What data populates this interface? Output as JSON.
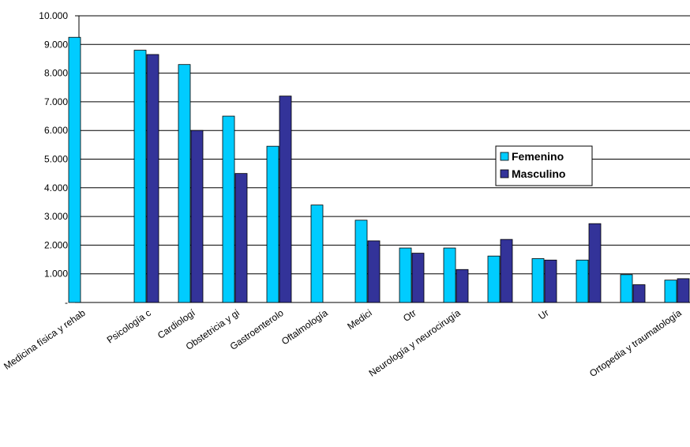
{
  "chart_data": {
    "type": "bar",
    "categories": [
      "Medicina física y rehab",
      "Psicología c",
      "Cardiologí",
      "Obstetricia y gi",
      "Gastroenterolo",
      "Oftalmología",
      "Medici",
      "Otr",
      "Neurología y neurocirugía",
      null,
      "Ur",
      null,
      null,
      "Ortopedia y traumatología"
    ],
    "series": [
      {
        "name": "Femenino",
        "color": "#00ccff",
        "values": [
          9250,
          8800,
          8300,
          6500,
          5450,
          3400,
          2870,
          1900,
          1900,
          1620,
          1530,
          1480,
          970,
          780
        ]
      },
      {
        "name": "Masculino",
        "color": "#333399",
        "values": [
          null,
          8650,
          6000,
          4500,
          7200,
          null,
          2150,
          1720,
          1150,
          2200,
          1480,
          2750,
          620,
          830
        ]
      }
    ],
    "ylim": [
      0,
      10000
    ],
    "yticks": [
      {
        "value": 0,
        "label": "-"
      },
      {
        "value": 1000,
        "label": "1.000"
      },
      {
        "value": 2000,
        "label": "2.000"
      },
      {
        "value": 3000,
        "label": "3.000"
      },
      {
        "value": 4000,
        "label": "4.000"
      },
      {
        "value": 5000,
        "label": "5.000"
      },
      {
        "value": 6000,
        "label": "6.000"
      },
      {
        "value": 7000,
        "label": "7.000"
      },
      {
        "value": 8000,
        "label": "8.000"
      },
      {
        "value": 9000,
        "label": "9.000"
      },
      {
        "value": 10000,
        "label": "10.000"
      }
    ],
    "grid": true,
    "legend": "right"
  }
}
